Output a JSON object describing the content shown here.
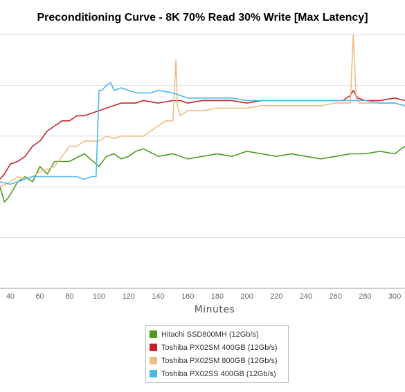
{
  "chart_data": {
    "type": "line",
    "title": "Preconditioning Curve - 8K 70% Read 30% Write [Max Latency]",
    "xlabel": "Minutes",
    "ylabel": "",
    "xlim": [
      33,
      307
    ],
    "ylim": [
      0,
      100
    ],
    "x_ticks": [
      40,
      60,
      80,
      100,
      120,
      140,
      160,
      180,
      200,
      220,
      240,
      260,
      280,
      300
    ],
    "y_gridlines": [
      0,
      20,
      40,
      60,
      80,
      100
    ],
    "grid": true,
    "legend_position": "bottom-center",
    "series": [
      {
        "name": "Hitachi SSD800MH (12Gb/s)",
        "color": "#4a9a1f",
        "x": [
          33,
          36,
          39,
          42,
          45,
          50,
          55,
          60,
          65,
          70,
          80,
          90,
          100,
          105,
          110,
          115,
          120,
          125,
          130,
          140,
          150,
          160,
          170,
          180,
          190,
          200,
          210,
          220,
          230,
          240,
          250,
          260,
          270,
          280,
          290,
          300,
          307
        ],
        "values": [
          40,
          34,
          36,
          39,
          42,
          44,
          42,
          48,
          45,
          50,
          50,
          53,
          48,
          52,
          53,
          51,
          52,
          54,
          55,
          52,
          53,
          51,
          52,
          53,
          52,
          54,
          53,
          52,
          53,
          52,
          51,
          52,
          53,
          53,
          54,
          53,
          56
        ]
      },
      {
        "name": "Toshiba PX02SM 400GB (12Gb/s)",
        "color": "#c3242a",
        "x": [
          33,
          36,
          40,
          45,
          50,
          55,
          60,
          65,
          70,
          75,
          80,
          85,
          90,
          95,
          100,
          105,
          110,
          115,
          120,
          125,
          130,
          140,
          150,
          155,
          160,
          170,
          180,
          190,
          200,
          210,
          220,
          230,
          240,
          250,
          260,
          265,
          270,
          272,
          275,
          280,
          290,
          300,
          307
        ],
        "values": [
          43,
          45,
          49,
          50,
          52,
          56,
          58,
          62,
          64,
          66,
          66,
          68,
          68,
          69,
          70,
          71,
          72,
          73,
          73,
          73,
          74,
          73,
          74,
          74,
          73,
          74,
          74,
          74,
          73,
          74,
          74,
          74,
          74,
          74,
          74,
          74,
          76,
          78,
          75,
          74,
          74,
          75,
          74
        ]
      },
      {
        "name": "Toshiba PX02SM 800GB (12Gb/s)",
        "color": "#efbc84",
        "x": [
          33,
          40,
          45,
          50,
          55,
          60,
          65,
          70,
          75,
          80,
          85,
          90,
          95,
          100,
          105,
          110,
          115,
          120,
          125,
          130,
          135,
          140,
          145,
          150,
          152,
          153,
          155,
          160,
          170,
          180,
          190,
          200,
          210,
          220,
          230,
          240,
          250,
          260,
          265,
          270,
          272,
          274,
          276,
          280,
          290,
          300,
          307
        ],
        "values": [
          40,
          42,
          44,
          43,
          44,
          46,
          47,
          48,
          52,
          56,
          56,
          58,
          58,
          58,
          60,
          59,
          60,
          60,
          60,
          60,
          62,
          64,
          66,
          66,
          90,
          72,
          68,
          70,
          70,
          71,
          71,
          71,
          72,
          72,
          72,
          72,
          72,
          73,
          73,
          73,
          100,
          75,
          73,
          73,
          73,
          73,
          72
        ]
      },
      {
        "name": "Toshiba PX02SS 400GB (12Gb/s)",
        "color": "#4eb7e8",
        "x": [
          33,
          40,
          45,
          50,
          55,
          60,
          65,
          70,
          75,
          80,
          85,
          90,
          95,
          98,
          100,
          102,
          105,
          108,
          110,
          115,
          120,
          125,
          130,
          135,
          140,
          150,
          160,
          170,
          180,
          190,
          200,
          210,
          220,
          230,
          240,
          250,
          260,
          270,
          280,
          290,
          300,
          307
        ],
        "values": [
          42,
          41,
          42,
          43,
          44,
          44,
          44,
          44,
          44,
          44,
          44,
          43,
          44,
          44,
          78,
          78,
          80,
          81,
          78,
          79,
          78,
          77,
          77,
          77,
          78,
          77,
          75,
          75,
          75,
          75,
          74,
          74,
          74,
          74,
          74,
          74,
          74,
          74,
          74,
          73,
          73,
          72
        ]
      }
    ]
  }
}
